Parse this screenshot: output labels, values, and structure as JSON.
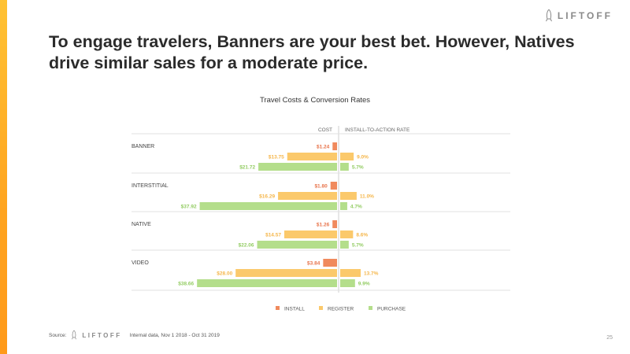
{
  "brand": {
    "name": "LIFTOFF"
  },
  "headline": "To engage travelers, Banners are your best bet. However, Natives drive similar sales for a moderate price.",
  "footer": {
    "source_label": "Source:",
    "brand": "LIFTOFF",
    "note": "Internal data, Nov 1 2018 - Oct 31 2019"
  },
  "page_number": "25",
  "colors": {
    "install": "#f08a5d",
    "register": "#fbc96b",
    "purchase": "#b4de8b",
    "accent": "#ffa41f"
  },
  "chart_data": {
    "type": "bar",
    "title": "Travel Costs & Conversion Rates",
    "left_header": "COST",
    "right_header": "INSTALL-TO-ACTION RATE",
    "categories": [
      "BANNER",
      "INTERSTITIAL",
      "NATIVE",
      "VIDEO"
    ],
    "series": [
      {
        "name": "INSTALL",
        "cost": [
          1.24,
          1.8,
          1.26,
          3.84
        ],
        "cost_labels": [
          "$1.24",
          "$1.80",
          "$1.26",
          "$3.84"
        ],
        "rate": [
          null,
          null,
          null,
          null
        ],
        "rate_labels": [
          "",
          "",
          "",
          ""
        ]
      },
      {
        "name": "REGISTER",
        "cost": [
          13.75,
          16.29,
          14.57,
          28.0
        ],
        "cost_labels": [
          "$13.75",
          "$16.29",
          "$14.57",
          "$28.00"
        ],
        "rate": [
          9.0,
          11.0,
          8.6,
          13.7
        ],
        "rate_labels": [
          "9.0%",
          "11.0%",
          "8.6%",
          "13.7%"
        ]
      },
      {
        "name": "PURCHASE",
        "cost": [
          21.72,
          37.92,
          22.06,
          38.66
        ],
        "cost_labels": [
          "$21.72",
          "$37.92",
          "$22.06",
          "$38.66"
        ],
        "rate": [
          5.7,
          4.7,
          5.7,
          9.9
        ],
        "rate_labels": [
          "5.7%",
          "4.7%",
          "5.7%",
          "9.9%"
        ]
      }
    ]
  }
}
